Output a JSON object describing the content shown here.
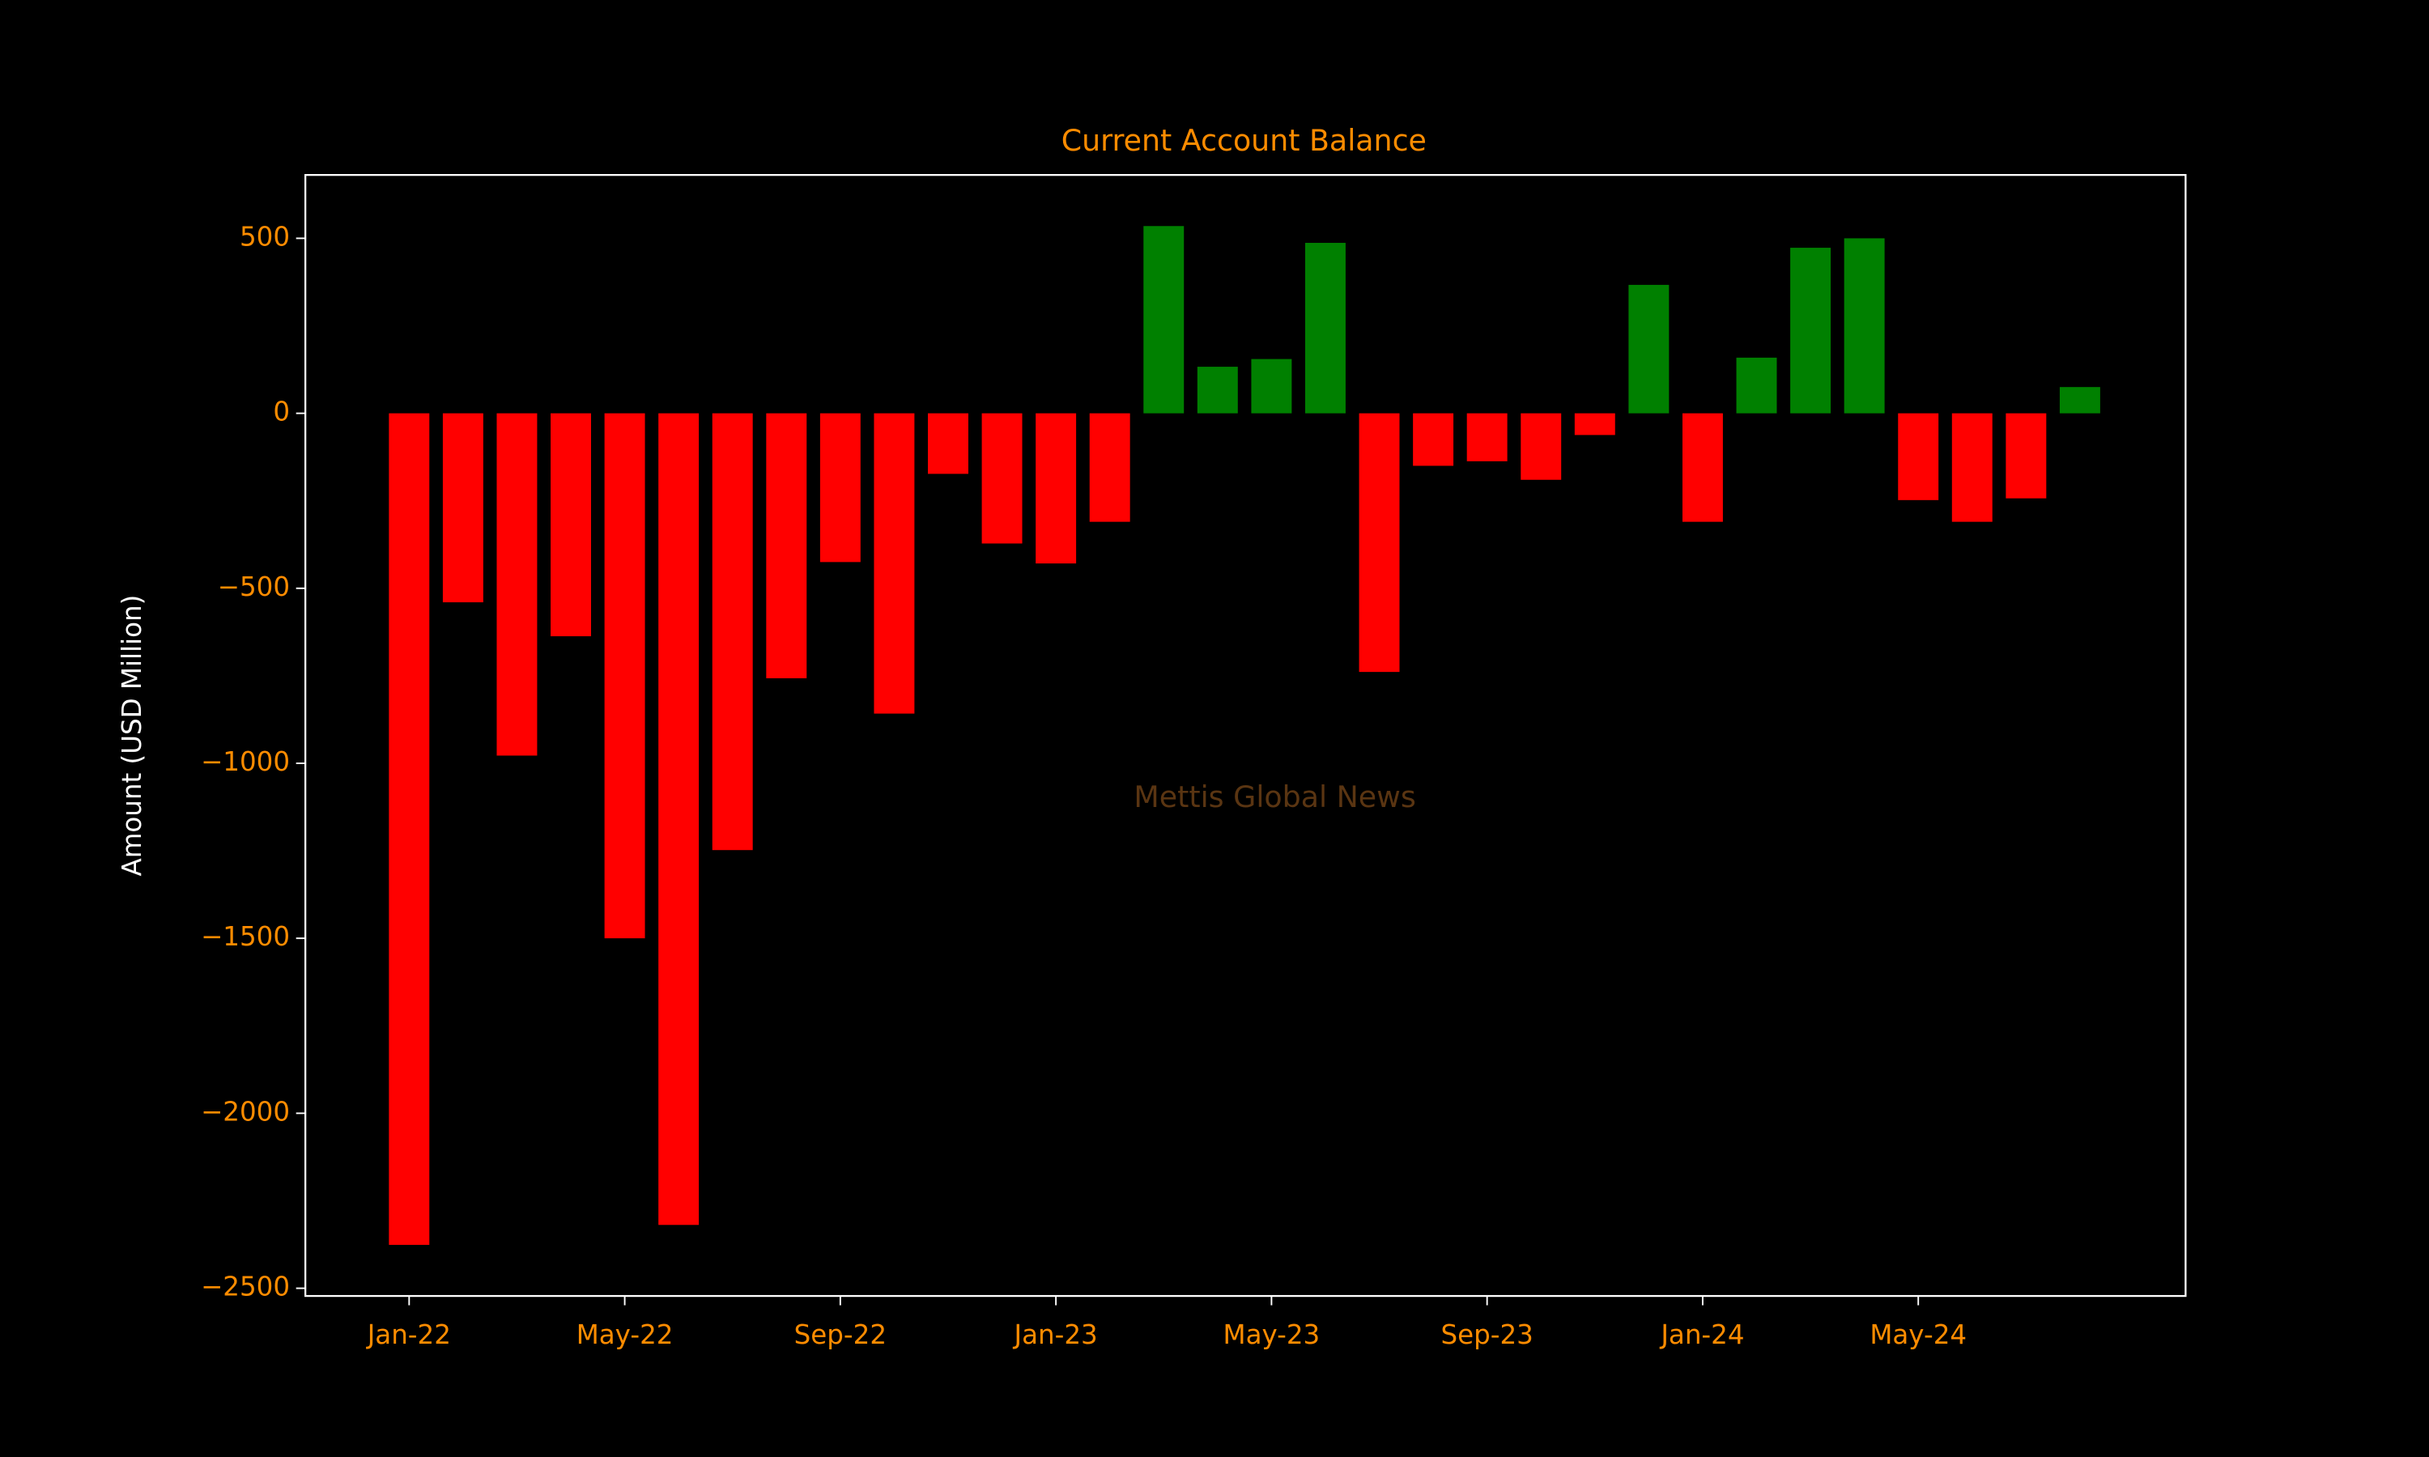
{
  "chart_data": {
    "type": "bar",
    "title": "Current Account Balance",
    "y_label": "Amount (USD Million)",
    "annotation": "Mettis Global News",
    "categories": [
      "Jan-22",
      null,
      null,
      null,
      "May-22",
      null,
      null,
      null,
      "Sep-22",
      null,
      null,
      null,
      "Jan-23",
      null,
      null,
      null,
      "May-23",
      null,
      null,
      null,
      "Sep-23",
      null,
      null,
      null,
      "Jan-24",
      null,
      null,
      null,
      "May-24",
      null,
      null,
      null
    ],
    "values": [
      -2376,
      -540,
      -978,
      -637,
      -1500,
      -2319,
      -1248,
      -757,
      -425,
      -858,
      -173,
      -372,
      -429,
      -310,
      535,
      133,
      155,
      487,
      -739,
      -150,
      -137,
      -190,
      -62,
      367,
      -310,
      159,
      473,
      500,
      -248,
      -310,
      -243,
      75
    ],
    "positive_color": "#008000",
    "negative_color": "#ff0000",
    "ylim": [
      -2522,
      681
    ],
    "yticks": [
      {
        "value": -2500,
        "label": "−2500"
      },
      {
        "value": -2000,
        "label": "−2000"
      },
      {
        "value": -1500,
        "label": "−1500"
      },
      {
        "value": -1000,
        "label": "−1000"
      },
      {
        "value": -500,
        "label": "−500"
      },
      0,
      500
    ],
    "grid": false
  }
}
